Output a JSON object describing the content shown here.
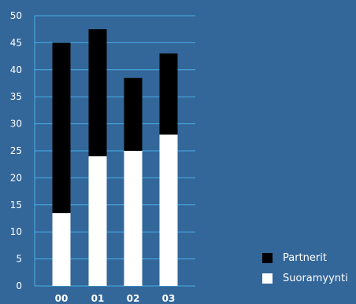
{
  "colors": {
    "background": "#336699",
    "grid": "#4ab0e6",
    "axis": "#4ab0e6",
    "text": "#ffffff"
  },
  "chart_data": {
    "type": "bar",
    "stacked": true,
    "categories": [
      "00",
      "01",
      "02",
      "03"
    ],
    "series": [
      {
        "name": "Suoramyynti",
        "color": "#ffffff",
        "values": [
          13.5,
          24,
          25,
          28
        ]
      },
      {
        "name": "Partnerit",
        "color": "#000000",
        "values": [
          31.5,
          23.5,
          13.5,
          15
        ]
      }
    ],
    "ylim": [
      0,
      50
    ],
    "yticks": [
      "0",
      "5",
      "10",
      "15",
      "20",
      "25",
      "30",
      "35",
      "40",
      "45",
      "50"
    ],
    "grid": true,
    "legend_position": "bottom-right",
    "title": "",
    "xlabel": "",
    "ylabel": ""
  }
}
